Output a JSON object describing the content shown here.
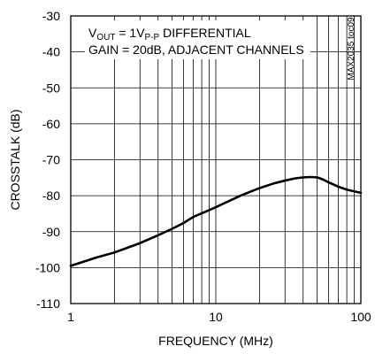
{
  "chart_data": {
    "type": "line",
    "title": "",
    "xlabel": "FREQUENCY (MHz)",
    "ylabel": "CROSSTALK (dB)",
    "x_scale": "log",
    "xlim": [
      1,
      100
    ],
    "ylim": [
      -110,
      -30
    ],
    "x_ticks": [
      1,
      10,
      100
    ],
    "x_tick_labels": [
      "1",
      "10",
      "100"
    ],
    "y_ticks": [
      -30,
      -40,
      -50,
      -60,
      -70,
      -80,
      -90,
      -100,
      -110
    ],
    "y_tick_labels": [
      "-30",
      "-40",
      "-50",
      "-60",
      "-70",
      "-80",
      "-90",
      "-100",
      "-110"
    ],
    "grid": true,
    "annotations": [
      {
        "prefix": "V",
        "sub1": "OUT",
        "mid": " = 1V",
        "sub2": "P-P",
        "suffix": " DIFFERENTIAL"
      },
      {
        "text": "GAIN = 20dB, ADJACENT CHANNELS"
      }
    ],
    "side_id": "MAX2035 toc09",
    "series": [
      {
        "x": [
          1,
          1.5,
          2,
          3,
          4,
          5,
          6,
          6.5,
          7,
          8,
          10,
          12,
          15,
          20,
          25,
          30,
          35,
          40,
          45,
          50,
          55,
          60,
          70,
          80,
          90,
          100
        ],
        "y": [
          -99.5,
          -97.2,
          -95.8,
          -93.2,
          -91.0,
          -89.2,
          -87.6,
          -86.7,
          -85.9,
          -84.9,
          -83.2,
          -81.7,
          -79.9,
          -77.9,
          -76.6,
          -75.8,
          -75.2,
          -74.9,
          -74.8,
          -74.9,
          -75.5,
          -76.3,
          -77.5,
          -78.3,
          -78.8,
          -79.2
        ]
      }
    ]
  }
}
